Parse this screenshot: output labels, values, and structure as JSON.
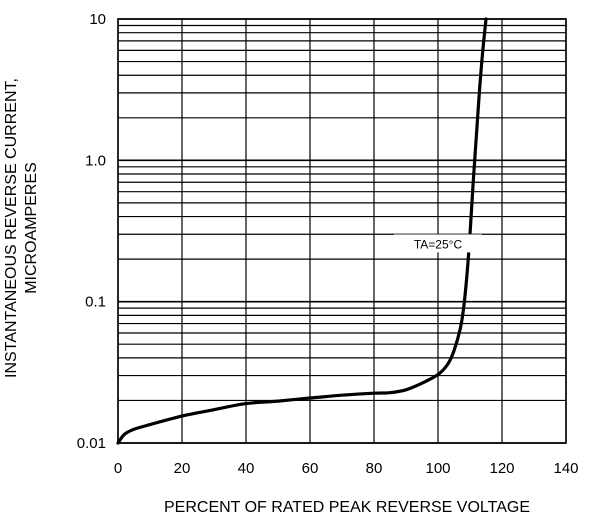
{
  "chart_data": {
    "type": "line",
    "title": "",
    "xlabel": "PERCENT OF RATED PEAK REVERSE VOLTAGE",
    "ylabel_line1": "INSTANTANEOUS REVERSE CURRENT,",
    "ylabel_line2": "MICROAMPERES",
    "xlim": [
      0,
      140
    ],
    "ylim": [
      0.01,
      10
    ],
    "yscale": "log",
    "grid": true,
    "x_ticks": [
      0,
      20,
      40,
      60,
      80,
      100,
      120,
      140
    ],
    "x_tick_labels": [
      "0",
      "20",
      "40",
      "60",
      "80",
      "100",
      "120",
      "140"
    ],
    "y_ticks": [
      0.01,
      0.1,
      1.0,
      10
    ],
    "y_tick_labels": [
      "0.01",
      "0.1",
      "1.0",
      "10"
    ],
    "annotation": {
      "text": "TA=25°C",
      "x": 100,
      "y": 0.25
    },
    "series": [
      {
        "color": "#000000",
        "x": [
          0,
          2,
          5,
          10,
          20,
          30,
          40,
          50,
          60,
          70,
          80,
          85,
          90,
          95,
          100,
          103,
          105,
          107,
          108,
          109,
          110,
          111,
          112,
          113,
          114,
          115
        ],
        "y": [
          0.01,
          0.0115,
          0.0125,
          0.0135,
          0.0155,
          0.0172,
          0.019,
          0.0198,
          0.0208,
          0.0218,
          0.0225,
          0.0227,
          0.0238,
          0.0265,
          0.0305,
          0.036,
          0.045,
          0.065,
          0.09,
          0.15,
          0.3,
          0.7,
          1.5,
          3.2,
          6.0,
          10.0
        ]
      }
    ]
  }
}
